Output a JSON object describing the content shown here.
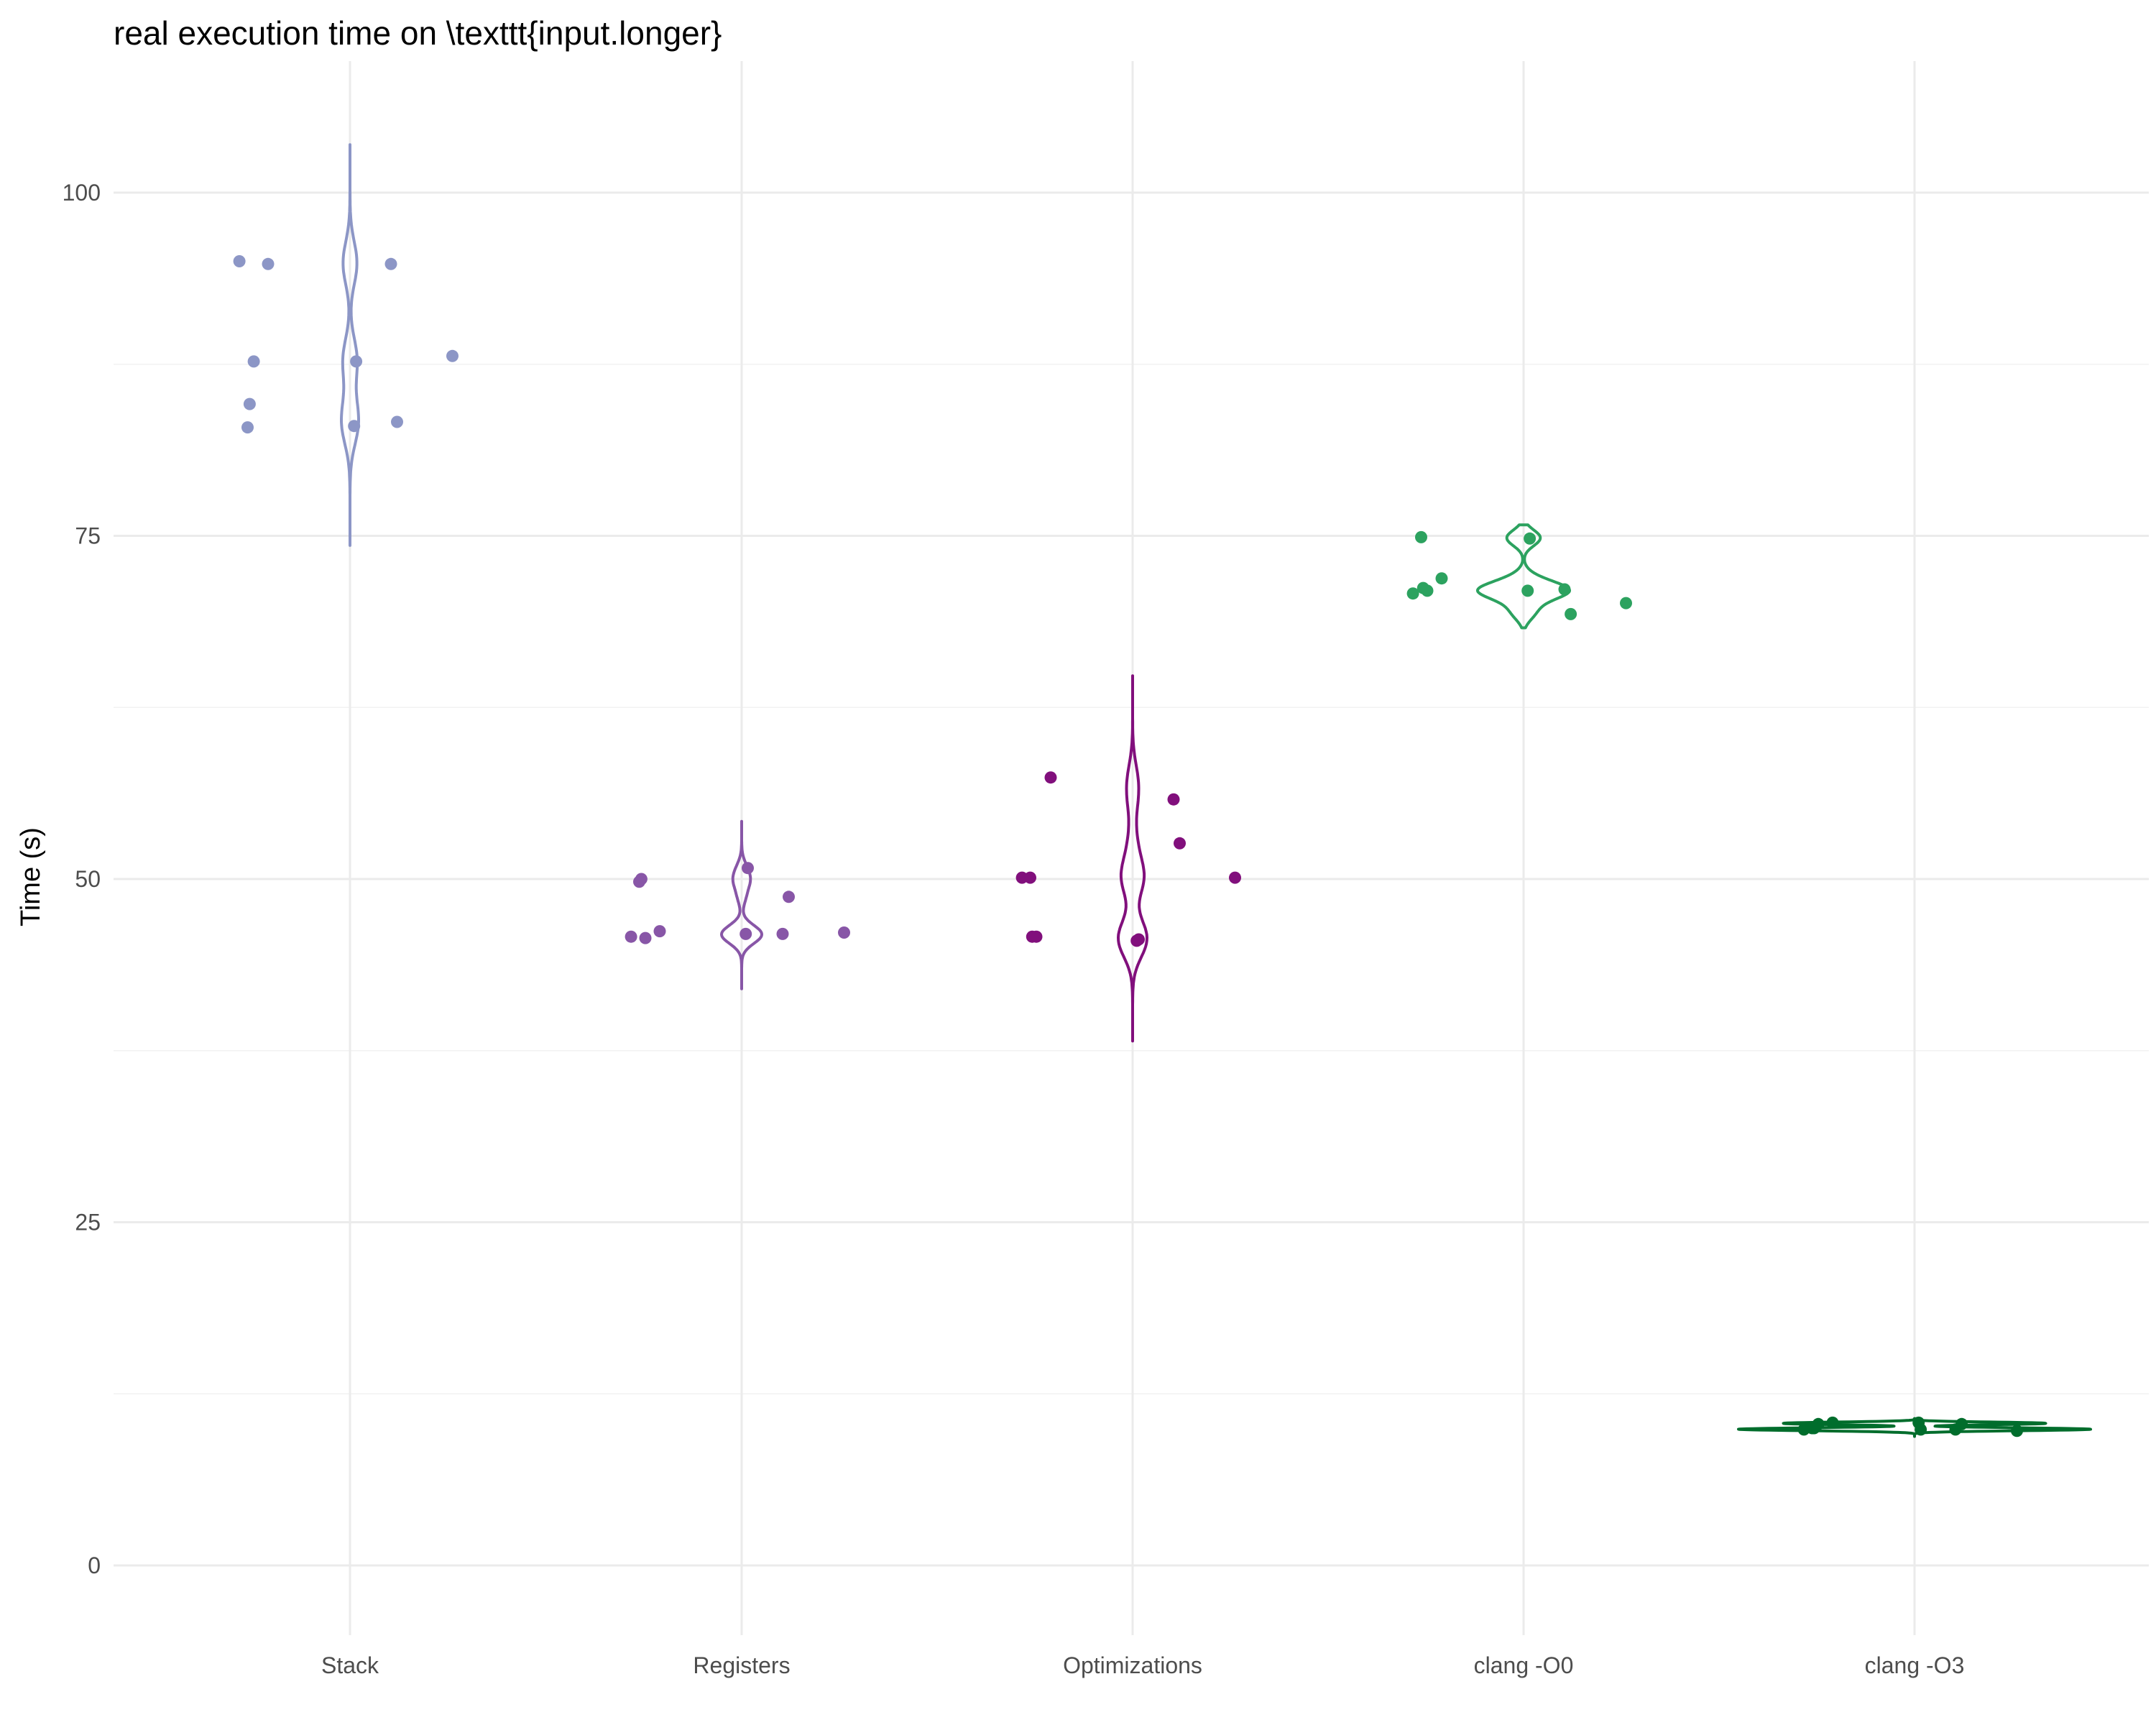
{
  "chart_data": {
    "type": "violin",
    "title": "real execution time on \\texttt{input.longer}",
    "xlabel": "",
    "ylabel": "Time (s)",
    "categories": [
      "Stack",
      "Registers",
      "Optimizations",
      "clang -O0",
      "clang -O3"
    ],
    "ylim": [
      -5,
      108
    ],
    "yticks": [
      0,
      25,
      50,
      75,
      100
    ],
    "yminor": [
      12.5,
      37.5,
      62.5,
      87.5
    ],
    "grid": true,
    "legend": "none",
    "series": [
      {
        "category": "Stack",
        "color": "#8c96c6",
        "values": [
          95.0,
          94.8,
          94.8,
          88.1,
          87.7,
          87.7,
          84.6,
          83.3,
          82.9,
          83.0
        ],
        "violin_range": [
          74.3,
          103.5
        ]
      },
      {
        "category": "Registers",
        "color": "#8856a7",
        "values": [
          45.8,
          46.2,
          46.0,
          46.1,
          45.7,
          50.8,
          50.0,
          48.7,
          49.8,
          46.0
        ],
        "violin_range": [
          42.0,
          54.2
        ]
      },
      {
        "category": "Optimizations",
        "color": "#810f7c",
        "values": [
          50.1,
          57.4,
          55.8,
          50.1,
          45.8,
          45.6,
          45.8,
          52.6,
          50.1,
          45.5
        ],
        "violin_range": [
          38.2,
          64.8
        ]
      },
      {
        "category": "clang -O0",
        "color": "#2ca25f",
        "values": [
          70.8,
          71.9,
          71.1,
          70.1,
          71.0,
          74.8,
          71.2,
          69.3,
          74.9,
          71.0
        ],
        "violin_range": [
          68.3,
          75.8
        ]
      },
      {
        "category": "clang -O3",
        "color": "#006d2c",
        "values": [
          9.9,
          10.4,
          9.9,
          9.8,
          10.3,
          9.9,
          10.0,
          10.3,
          10.0,
          10.4
        ],
        "violin_range": [
          9.4,
          10.7
        ]
      }
    ]
  }
}
